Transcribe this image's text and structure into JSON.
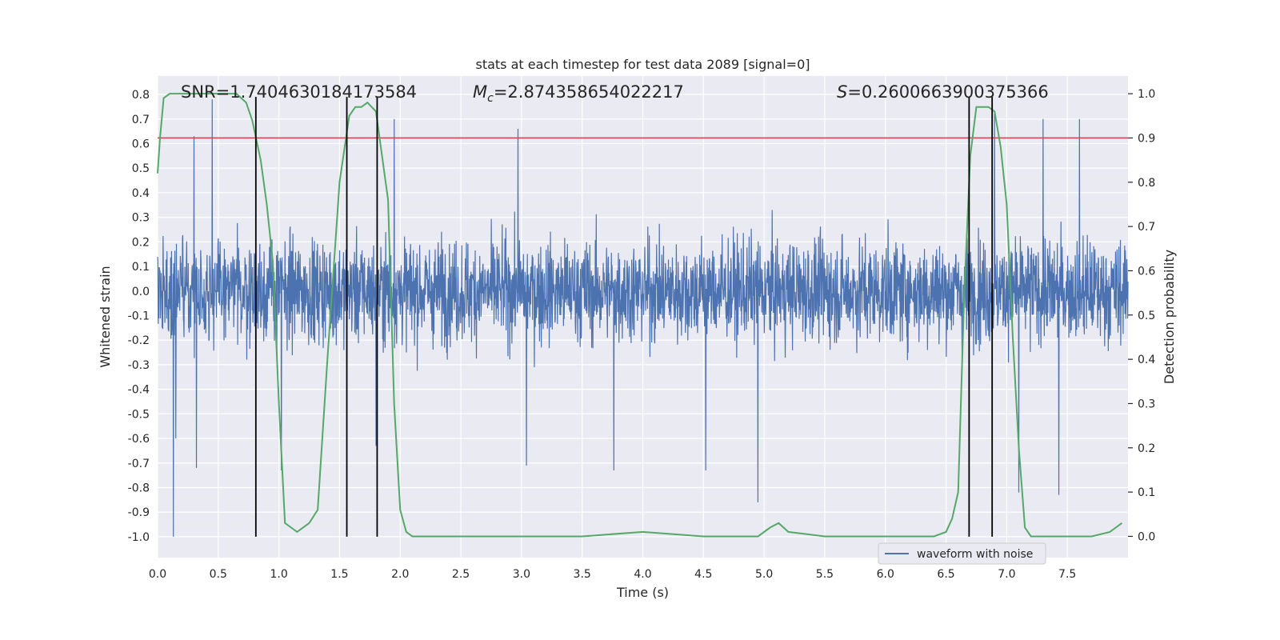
{
  "chart_data": {
    "type": "line",
    "title": "stats at each timestep for test data 2089 [signal=0]",
    "xlabel": "Time (s)",
    "ylabel": "Whitened strain",
    "ylabel_right": "Detection probability",
    "xlim": [
      0,
      8
    ],
    "ylim": [
      -1.085,
      0.875
    ],
    "ylim_right": [
      -0.048,
      1.04
    ],
    "x_ticks": [
      0.0,
      0.5,
      1.0,
      1.5,
      2.0,
      2.5,
      3.0,
      3.5,
      4.0,
      4.5,
      5.0,
      5.5,
      6.0,
      6.5,
      7.0,
      7.5
    ],
    "x_tick_labels": [
      "0.0",
      "0.5",
      "1.0",
      "1.5",
      "2.0",
      "2.5",
      "3.0",
      "3.5",
      "4.0",
      "4.5",
      "5.0",
      "5.5",
      "6.0",
      "6.5",
      "7.0",
      "7.5"
    ],
    "y_ticks": [
      0.8,
      0.7,
      0.6,
      0.5,
      0.4,
      0.3,
      0.2,
      0.1,
      0.0,
      -0.1,
      -0.2,
      -0.3,
      -0.4,
      -0.5,
      -0.6,
      -0.7,
      -0.8,
      -0.9,
      -1.0
    ],
    "y_tick_labels": [
      "0.8",
      "0.7",
      "0.6",
      "0.5",
      "0.4",
      "0.3",
      "0.2",
      "0.1",
      "0.0",
      "-0.1",
      "-0.2",
      "-0.3",
      "-0.4",
      "-0.5",
      "-0.6",
      "-0.7",
      "-0.8",
      "-0.9",
      "-1.0"
    ],
    "y_right_ticks": [
      1.0,
      0.9,
      0.8,
      0.7,
      0.6,
      0.5,
      0.4,
      0.3,
      0.2,
      0.1,
      0.0
    ],
    "y_right_tick_labels": [
      "1.0",
      "0.9",
      "0.8",
      "0.7",
      "0.6",
      "0.5",
      "0.4",
      "0.3",
      "0.2",
      "0.1",
      "0.0"
    ],
    "grid": true,
    "annotations": {
      "snr": "SNR=1.7404630184173584",
      "mc_symbol": "M",
      "mc_sub": "c",
      "mc_value": "=2.874358654022217",
      "s_symbol": "S",
      "s_value": "=0.2600663900375366"
    },
    "threshold": {
      "value": 0.9,
      "axis": "right",
      "color": "#c44e52"
    },
    "vlines": [
      0.81,
      1.56,
      1.81,
      6.69,
      6.88
    ],
    "vline_range": [
      -1.0,
      0.79
    ],
    "legend": {
      "label": "waveform with noise",
      "position": "lower-right"
    },
    "series": [
      {
        "name": "waveform with noise",
        "axis": "left",
        "color": "#4c72b0",
        "sample_count": 3200,
        "typical_extent": [
          -0.29,
          0.29
        ],
        "peaks": [
          [
            0.13,
            -1.0
          ],
          [
            0.45,
            0.78
          ],
          [
            0.3,
            0.63
          ],
          [
            0.15,
            -0.6
          ],
          [
            0.32,
            -0.72
          ],
          [
            1.02,
            -0.73
          ],
          [
            1.8,
            -0.63
          ],
          [
            1.95,
            0.7
          ],
          [
            2.97,
            0.66
          ],
          [
            3.04,
            -0.71
          ],
          [
            3.76,
            -0.73
          ],
          [
            4.52,
            -0.73
          ],
          [
            4.95,
            -0.86
          ],
          [
            6.9,
            0.73
          ],
          [
            7.3,
            0.7
          ],
          [
            7.6,
            0.7
          ],
          [
            7.1,
            -0.82
          ],
          [
            7.43,
            -0.83
          ]
        ]
      },
      {
        "name": "Detection probability",
        "axis": "right",
        "color": "#55a868",
        "x": [
          0.0,
          0.02,
          0.05,
          0.1,
          0.15,
          0.3,
          0.5,
          0.65,
          0.73,
          0.78,
          0.85,
          0.9,
          0.95,
          1.0,
          1.05,
          1.1,
          1.15,
          1.25,
          1.32,
          1.4,
          1.5,
          1.58,
          1.63,
          1.68,
          1.73,
          1.8,
          1.9,
          1.95,
          2.0,
          2.05,
          2.1,
          2.2,
          2.5,
          3.0,
          3.5,
          4.0,
          4.5,
          4.95,
          5.05,
          5.12,
          5.2,
          5.5,
          6.0,
          6.4,
          6.5,
          6.55,
          6.6,
          6.65,
          6.7,
          6.75,
          6.8,
          6.85,
          6.9,
          6.95,
          7.0,
          7.05,
          7.1,
          7.15,
          7.2,
          7.4,
          7.7,
          7.85,
          7.95
        ],
        "y": [
          0.82,
          0.9,
          0.99,
          1.0,
          1.0,
          1.0,
          1.0,
          1.0,
          0.98,
          0.94,
          0.85,
          0.75,
          0.62,
          0.3,
          0.03,
          0.02,
          0.01,
          0.03,
          0.06,
          0.4,
          0.8,
          0.95,
          0.97,
          0.97,
          0.98,
          0.96,
          0.76,
          0.3,
          0.06,
          0.01,
          0.0,
          0.0,
          0.0,
          0.0,
          0.0,
          0.01,
          0.0,
          0.0,
          0.02,
          0.03,
          0.01,
          0.0,
          0.0,
          0.0,
          0.01,
          0.04,
          0.1,
          0.55,
          0.86,
          0.97,
          0.97,
          0.97,
          0.96,
          0.88,
          0.75,
          0.45,
          0.2,
          0.02,
          0.0,
          0.0,
          0.0,
          0.01,
          0.03
        ]
      }
    ]
  }
}
